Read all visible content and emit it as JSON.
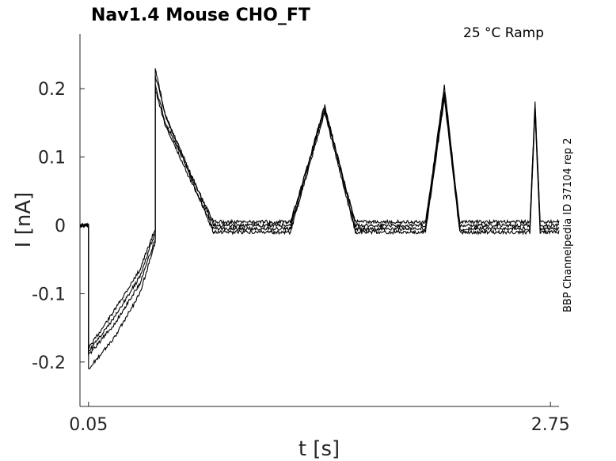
{
  "chart_data": {
    "type": "line",
    "title": "Nav1.4  Mouse  CHO_FT",
    "subtitle": "25 °C  Ramp",
    "side_label": "BBP Channelpedia ID 37104 rep 2",
    "xlabel": "t [s]",
    "ylabel": "I [nA]",
    "xlim": [
      0.0,
      2.8
    ],
    "ylim": [
      -0.265,
      0.28
    ],
    "xticks": [
      0.05,
      2.75
    ],
    "xtick_labels": [
      "0.05",
      "2.75"
    ],
    "yticks": [
      0.2,
      0.1,
      0,
      -0.1,
      -0.2
    ],
    "ytick_labels": [
      "0.2",
      "0.1",
      "0",
      "-0.1",
      "-0.2"
    ],
    "grid": false,
    "legend": "none",
    "line_color": "#000000",
    "series": [
      {
        "x": [
          0.0,
          0.05,
          0.05,
          0.2,
          0.35,
          0.44,
          0.44,
          0.5,
          0.78,
          1.23,
          1.43,
          1.61,
          1.95,
          2.02,
          2.13,
          2.22,
          2.59,
          2.63,
          2.66,
          2.69,
          2.8
        ],
        "y": [
          0.0,
          0.0,
          -0.18,
          -0.125,
          -0.065,
          -0.005,
          0.22,
          0.16,
          0.0,
          0.0,
          0.175,
          0.0,
          0.0,
          0.0,
          0.205,
          0.0,
          0.0,
          0.0,
          0.18,
          0.0,
          0.0
        ]
      },
      {
        "x": [
          0.0,
          0.05,
          0.05,
          0.2,
          0.35,
          0.44,
          0.44,
          0.5,
          0.78,
          1.23,
          1.43,
          1.61,
          1.95,
          2.02,
          2.13,
          2.22,
          2.59,
          2.63,
          2.66,
          2.69,
          2.8
        ],
        "y": [
          0.0,
          0.0,
          -0.185,
          -0.135,
          -0.075,
          -0.01,
          0.205,
          0.15,
          0.005,
          0.005,
          0.168,
          0.005,
          0.005,
          0.005,
          0.195,
          0.005,
          0.005,
          0.005,
          0.175,
          0.005,
          0.005
        ]
      },
      {
        "x": [
          0.0,
          0.05,
          0.05,
          0.2,
          0.35,
          0.44,
          0.44,
          0.5,
          0.78,
          1.23,
          1.43,
          1.61,
          1.95,
          2.02,
          2.13,
          2.22,
          2.59,
          2.63,
          2.66,
          2.69,
          2.8
        ],
        "y": [
          0.0,
          0.0,
          -0.19,
          -0.145,
          -0.085,
          -0.02,
          0.2,
          0.145,
          -0.005,
          -0.005,
          0.172,
          -0.005,
          -0.005,
          -0.005,
          0.19,
          -0.005,
          -0.005,
          -0.005,
          0.17,
          -0.005,
          -0.005
        ]
      },
      {
        "x": [
          0.0,
          0.05,
          0.05,
          0.2,
          0.35,
          0.44,
          0.44,
          0.5,
          0.78,
          1.23,
          1.43,
          1.61,
          1.95,
          2.02,
          2.13,
          2.22,
          2.59,
          2.63,
          2.66,
          2.69,
          2.8
        ],
        "y": [
          0.0,
          0.0,
          -0.21,
          -0.165,
          -0.1,
          -0.025,
          0.23,
          0.16,
          -0.01,
          -0.01,
          0.165,
          -0.01,
          -0.01,
          -0.01,
          0.185,
          -0.01,
          -0.01,
          -0.01,
          0.165,
          -0.01,
          -0.01
        ]
      }
    ]
  }
}
